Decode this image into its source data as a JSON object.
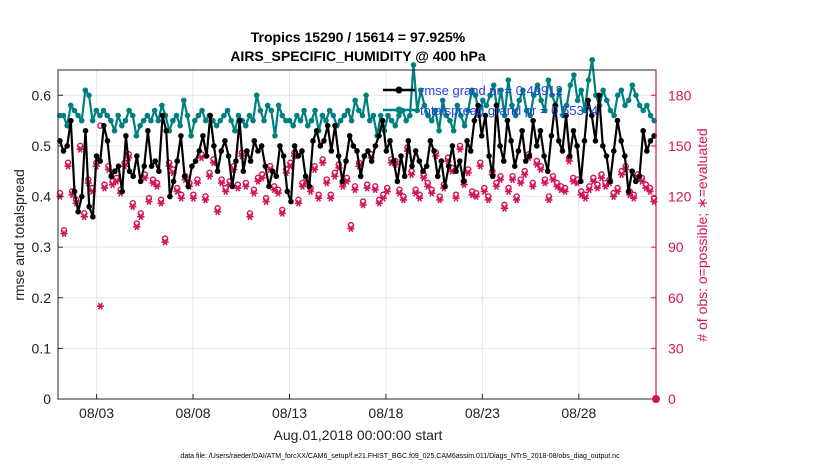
{
  "chart_data": {
    "type": "line",
    "title_line1": "Tropics 15290 / 15614 = 97.925%",
    "title_line2": "AIRS_SPECIFIC_HUMIDITY @ 400 hPa",
    "xlabel": "Aug.01,2018 00:00:00 start",
    "ylabel_left": "rmse and totalspread",
    "ylabel_right": "# of obs: o=possible; ∗=evaluated",
    "x_ticks": [
      {
        "day": 3,
        "label": "08/03"
      },
      {
        "day": 8,
        "label": "08/08"
      },
      {
        "day": 13,
        "label": "08/13"
      },
      {
        "day": 18,
        "label": "08/18"
      },
      {
        "day": 23,
        "label": "08/23"
      },
      {
        "day": 28,
        "label": "08/28"
      }
    ],
    "xlim": [
      1,
      32
    ],
    "ylim_left": [
      0,
      0.65
    ],
    "ylim_right": [
      0,
      195
    ],
    "yticks_left": [
      "0",
      "0.1",
      "0.2",
      "0.3",
      "0.4",
      "0.5",
      "0.6"
    ],
    "yticks_right": [
      "0",
      "30",
      "60",
      "90",
      "120",
      "150",
      "180"
    ],
    "legend": [
      {
        "label": "rmse grand pr = 0.49912",
        "color": "#000000"
      },
      {
        "label": "totalspread grand pr = 0.55374",
        "color": "#007f7f"
      }
    ],
    "series": [
      {
        "name": "rmse",
        "color": "#000000",
        "values": [
          0.51,
          0.49,
          0.5,
          0.55,
          0.41,
          0.37,
          0.4,
          0.53,
          0.38,
          0.36,
          0.48,
          0.47,
          0.54,
          0.51,
          0.44,
          0.45,
          0.46,
          0.41,
          0.52,
          0.45,
          0.44,
          0.48,
          0.43,
          0.46,
          0.53,
          0.46,
          0.47,
          0.45,
          0.56,
          0.53,
          0.4,
          0.43,
          0.47,
          0.52,
          0.44,
          0.42,
          0.46,
          0.47,
          0.49,
          0.52,
          0.48,
          0.56,
          0.5,
          0.45,
          0.49,
          0.51,
          0.48,
          0.42,
          0.47,
          0.55,
          0.45,
          0.49,
          0.47,
          0.51,
          0.49,
          0.5,
          0.46,
          0.42,
          0.45,
          0.44,
          0.5,
          0.48,
          0.41,
          0.39,
          0.5,
          0.48,
          0.49,
          0.44,
          0.42,
          0.51,
          0.53,
          0.5,
          0.51,
          0.54,
          0.49,
          0.54,
          0.48,
          0.43,
          0.47,
          0.52,
          0.5,
          0.49,
          0.44,
          0.48,
          0.49,
          0.47,
          0.5,
          0.52,
          0.55,
          0.49,
          0.51,
          0.47,
          0.43,
          0.48,
          0.44,
          0.51,
          0.46,
          0.49,
          0.47,
          0.45,
          0.46,
          0.51,
          0.49,
          0.44,
          0.47,
          0.42,
          0.46,
          0.5,
          0.45,
          0.47,
          0.43,
          0.51,
          0.49,
          0.55,
          0.58,
          0.52,
          0.56,
          0.48,
          0.44,
          0.58,
          0.5,
          0.47,
          0.55,
          0.51,
          0.46,
          0.49,
          0.53,
          0.47,
          0.48,
          0.55,
          0.5,
          0.53,
          0.48,
          0.45,
          0.52,
          0.58,
          0.51,
          0.49,
          0.56,
          0.48,
          0.53,
          0.5,
          0.43,
          0.51,
          0.59,
          0.56,
          0.51,
          0.6,
          0.5,
          0.48,
          0.43,
          0.49,
          0.55,
          0.51,
          0.48,
          0.41,
          0.45,
          0.43,
          0.44,
          0.53,
          0.49,
          0.51,
          0.52
        ]
      },
      {
        "name": "totalspread",
        "color": "#007f7f",
        "values": [
          0.56,
          0.56,
          0.54,
          0.58,
          0.57,
          0.56,
          0.55,
          0.61,
          0.6,
          0.55,
          0.57,
          0.56,
          0.57,
          0.56,
          0.55,
          0.53,
          0.56,
          0.54,
          0.55,
          0.57,
          0.56,
          0.52,
          0.54,
          0.55,
          0.56,
          0.55,
          0.57,
          0.55,
          0.58,
          0.56,
          0.53,
          0.55,
          0.56,
          0.54,
          0.59,
          0.56,
          0.52,
          0.55,
          0.56,
          0.57,
          0.55,
          0.56,
          0.55,
          0.54,
          0.55,
          0.56,
          0.57,
          0.55,
          0.53,
          0.56,
          0.55,
          0.54,
          0.56,
          0.55,
          0.6,
          0.57,
          0.55,
          0.58,
          0.57,
          0.52,
          0.58,
          0.56,
          0.55,
          0.55,
          0.54,
          0.56,
          0.55,
          0.57,
          0.54,
          0.55,
          0.57,
          0.53,
          0.56,
          0.55,
          0.57,
          0.56,
          0.54,
          0.55,
          0.56,
          0.57,
          0.55,
          0.59,
          0.57,
          0.56,
          0.6,
          0.55,
          0.56,
          0.52,
          0.56,
          0.53,
          0.56,
          0.55,
          0.54,
          0.56,
          0.57,
          0.55,
          0.56,
          0.66,
          0.57,
          0.61,
          0.58,
          0.56,
          0.55,
          0.57,
          0.53,
          0.59,
          0.56,
          0.55,
          0.53,
          0.58,
          0.56,
          0.54,
          0.57,
          0.61,
          0.6,
          0.56,
          0.59,
          0.58,
          0.6,
          0.62,
          0.57,
          0.61,
          0.56,
          0.63,
          0.58,
          0.56,
          0.59,
          0.61,
          0.57,
          0.56,
          0.6,
          0.62,
          0.59,
          0.57,
          0.63,
          0.6,
          0.58,
          0.61,
          0.56,
          0.58,
          0.62,
          0.64,
          0.59,
          0.61,
          0.57,
          0.63,
          0.67,
          0.6,
          0.58,
          0.61,
          0.59,
          0.57,
          0.56,
          0.6,
          0.61,
          0.58,
          0.59,
          0.62,
          0.6,
          0.58,
          0.57,
          0.58,
          0.56,
          0.55
        ]
      },
      {
        "name": "obs_possible",
        "color": "#d4145a",
        "marker": "o",
        "values": [
          122,
          100,
          140,
          123,
          118,
          150,
          110,
          130,
          125,
          140,
          162,
          127,
          138,
          129,
          131,
          124,
          140,
          145,
          116,
          104,
          110,
          133,
          119,
          130,
          128,
          118,
          95,
          140,
          136,
          125,
          121,
          132,
          128,
          121,
          130,
          145,
          120,
          134,
          142,
          113,
          130,
          125,
          129,
          138,
          127,
          146,
          128,
          110,
          124,
          131,
          133,
          119,
          138,
          126,
          124,
          112,
          136,
          140,
          146,
          118,
          128,
          130,
          125,
          138,
          121,
          142,
          130,
          121,
          134,
          139,
          128,
          131,
          103,
          126,
          140,
          117,
          127,
          145,
          126,
          118,
          121,
          125,
          142,
          141,
          124,
          120,
          149,
          135,
          124,
          121,
          133,
          128,
          124,
          146,
          120,
          127,
          143,
          137,
          121,
          150,
          129,
          136,
          123,
          122,
          140,
          125,
          120,
          135,
          128,
          132,
          115,
          125,
          132,
          120,
          130,
          135,
          145,
          128,
          141,
          138,
          130,
          120,
          132,
          128,
          126,
          125,
          143,
          131,
          130,
          123,
          121,
          126,
          131,
          127,
          133,
          128,
          130,
          122,
          125,
          135,
          138,
          123,
          121,
          133,
          131,
          127,
          125,
          119
        ]
      },
      {
        "name": "obs_evaluated",
        "color": "#d4145a",
        "marker": "*",
        "values": [
          120,
          98,
          138,
          121,
          116,
          148,
          108,
          128,
          123,
          138,
          55,
          125,
          136,
          127,
          129,
          122,
          138,
          143,
          114,
          102,
          108,
          131,
          117,
          128,
          126,
          116,
          93,
          138,
          134,
          123,
          119,
          130,
          126,
          119,
          128,
          143,
          118,
          132,
          140,
          111,
          128,
          123,
          127,
          136,
          125,
          144,
          126,
          108,
          122,
          129,
          131,
          117,
          136,
          124,
          122,
          110,
          134,
          138,
          144,
          116,
          126,
          128,
          123,
          136,
          119,
          140,
          128,
          119,
          132,
          137,
          126,
          129,
          101,
          124,
          138,
          115,
          125,
          143,
          124,
          116,
          119,
          123,
          140,
          139,
          122,
          118,
          147,
          133,
          122,
          119,
          131,
          126,
          122,
          144,
          118,
          125,
          141,
          135,
          119,
          148,
          127,
          134,
          121,
          120,
          138,
          123,
          118,
          133,
          126,
          130,
          113,
          123,
          130,
          118,
          128,
          133,
          143,
          126,
          139,
          136,
          128,
          118,
          130,
          126,
          124,
          123,
          141,
          129,
          128,
          121,
          119,
          124,
          129,
          125,
          131,
          126,
          128,
          120,
          123,
          133,
          136,
          121,
          119,
          131,
          129,
          125,
          123,
          117
        ]
      }
    ]
  },
  "footer": "data file: /Users/raeder/DAI/ATM_forcXX/CAM6_setup/f.e21.FHIST_BGC.f09_025.CAM6assim.011/Diags_NTrS_2018-08/obs_diag_output.nc"
}
